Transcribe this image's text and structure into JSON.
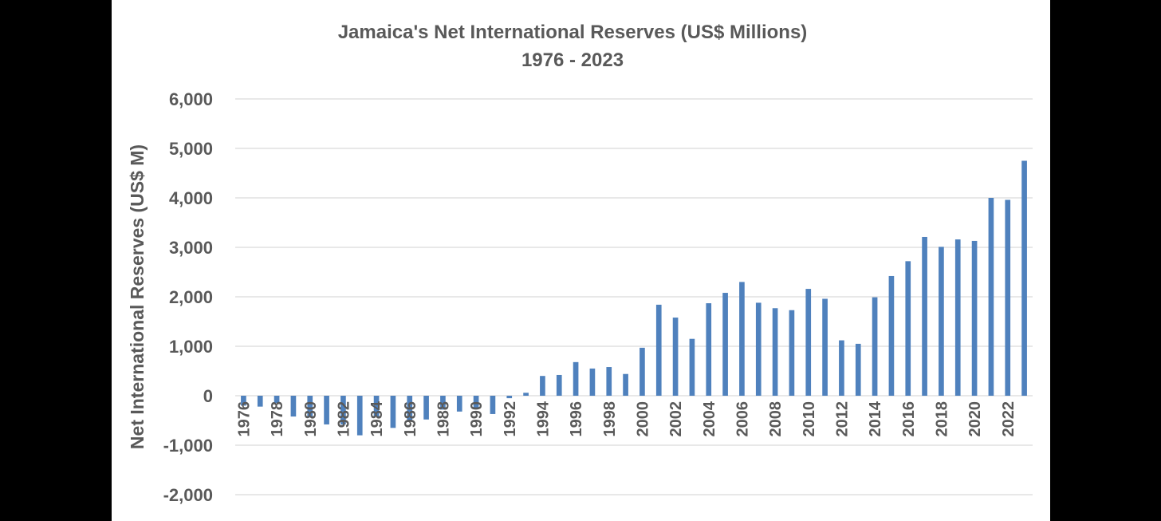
{
  "chart_data": {
    "type": "bar",
    "title": "Jamaica's Net International Reserves (US$ Millions)",
    "subtitle": "1976 - 2023",
    "ylabel": "Net International Reserves  (US$ M)",
    "xlabel": "",
    "ylim": [
      -2000,
      6000
    ],
    "yticks": [
      6000,
      5000,
      4000,
      3000,
      2000,
      1000,
      0,
      -1000,
      -2000
    ],
    "ytick_labels": [
      "6,000",
      "5,000",
      "4,000",
      "3,000",
      "2,000",
      "1,000",
      "0",
      "-1,000",
      "-2,000"
    ],
    "grid": true,
    "legend": "none",
    "bar_color": "#4f81bd",
    "categories": [
      "1976",
      "1977",
      "1978",
      "1979",
      "1980",
      "1981",
      "1982",
      "1983",
      "1984",
      "1985",
      "1986",
      "1987",
      "1988",
      "1989",
      "1990",
      "1991",
      "1992",
      "1993",
      "1994",
      "1995",
      "1996",
      "1997",
      "1998",
      "1999",
      "2000",
      "2001",
      "2002",
      "2003",
      "2004",
      "2005",
      "2006",
      "2007",
      "2008",
      "2009",
      "2010",
      "2011",
      "2012",
      "2013",
      "2014",
      "2015",
      "2016",
      "2017",
      "2018",
      "2019",
      "2020",
      "2021",
      "2022",
      "2023"
    ],
    "xtick_labels": [
      "1976",
      "1978",
      "1980",
      "1982",
      "1984",
      "1986",
      "1988",
      "1990",
      "1992",
      "1994",
      "1996",
      "1998",
      "2000",
      "2002",
      "2004",
      "2006",
      "2008",
      "2010",
      "2012",
      "2014",
      "2016",
      "2018",
      "2020",
      "2022"
    ],
    "values": [
      -200,
      -220,
      -150,
      -420,
      -440,
      -580,
      -580,
      -800,
      -420,
      -650,
      -520,
      -480,
      -280,
      -320,
      -250,
      -370,
      -50,
      60,
      400,
      420,
      680,
      550,
      580,
      440,
      970,
      1840,
      1580,
      1150,
      1870,
      2080,
      2300,
      1880,
      1770,
      1730,
      2160,
      1960,
      1120,
      1050,
      1990,
      2420,
      2720,
      3210,
      3010,
      3160,
      3130,
      4000,
      3960,
      4750
    ]
  }
}
